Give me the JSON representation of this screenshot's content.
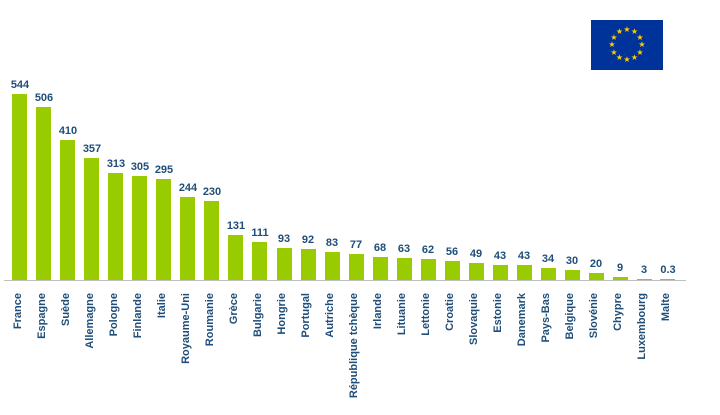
{
  "chart_data": {
    "type": "bar",
    "title": "",
    "xlabel": "",
    "ylabel": "",
    "ylim": [
      0,
      560
    ],
    "grid": false,
    "legend": "none",
    "bar_color": "#99CC00",
    "label_color": "#1F4E79",
    "axis_line_color": "#BFBFBF",
    "categories": [
      "France",
      "Espagne",
      "Suède",
      "Allemagne",
      "Pologne",
      "Finlande",
      "Italie",
      "Royaume-Uni",
      "Roumanie",
      "Grèce",
      "Bulgarie",
      "Hongrie",
      "Portugal",
      "Autriche",
      "République tchèque",
      "Irlande",
      "Lituanie",
      "Lettonie",
      "Croatie",
      "Slovaquie",
      "Estonie",
      "Danemark",
      "Pays-Bas",
      "Belgique",
      "Slovénie",
      "Chypre",
      "Luxembourg",
      "Malte"
    ],
    "values": [
      544,
      506,
      410,
      357,
      313,
      305,
      295,
      244,
      230,
      131,
      111,
      93,
      92,
      83,
      77,
      68,
      63,
      62,
      56,
      49,
      43,
      43,
      34,
      30,
      20,
      9,
      3,
      0.3
    ]
  },
  "flag": {
    "label": "eu-flag",
    "background": "#003399",
    "star_color": "#FFCC00",
    "star_count": 12
  }
}
